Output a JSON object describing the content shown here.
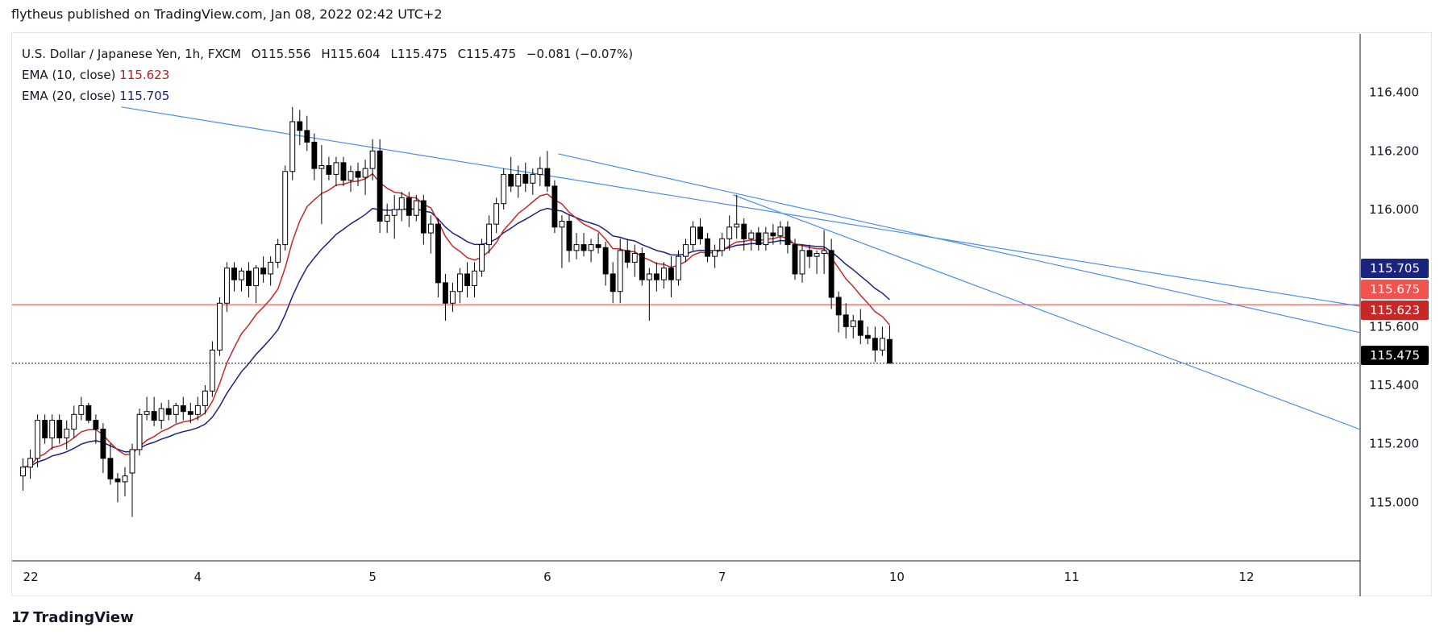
{
  "header": {
    "text": "flytheus published on TradingView.com, Jan 08, 2022 02:42 UTC+2"
  },
  "legend": {
    "symbol": "U.S. Dollar / Japanese Yen, 1h, FXCM",
    "o_label": "O",
    "o": "115.556",
    "h_label": "H",
    "h": "115.604",
    "l_label": "L",
    "l": "115.475",
    "c_label": "C",
    "c": "115.475",
    "change": "−0.081 (−0.07%)",
    "ema10_label": "EMA (10, close)",
    "ema10_value": "115.623",
    "ema20_label": "EMA (20, close)",
    "ema20_value": "115.705"
  },
  "footer": {
    "brand": "TradingView",
    "logo_icon": "tradingview-logo-icon"
  },
  "colors": {
    "up_candle": "#ffffff",
    "down_candle": "#000000",
    "candle_border": "#000000",
    "ema10": "#c62828",
    "ema20": "#1a237e",
    "trendline": "#4a8de8",
    "horizontal_line": "#e53935",
    "current_price_tag": "#000000",
    "ema20_tag": "#1a237e",
    "hline_tag": "#f05350",
    "ema10_tag": "#c62828"
  },
  "price_tags": [
    {
      "value": "115.705",
      "role": "ema20"
    },
    {
      "value": "115.675",
      "role": "horizontal_line"
    },
    {
      "value": "115.623",
      "role": "ema10"
    },
    {
      "value": "115.475",
      "role": "last_price"
    }
  ],
  "chart_data": {
    "type": "candlestick",
    "ylim": [
      114.8,
      116.6
    ],
    "y_ticks": [
      "116.400",
      "116.200",
      "116.000",
      "115.800",
      "115.600",
      "115.400",
      "115.200",
      "115.000"
    ],
    "x_ticks": [
      "22",
      "4",
      "5",
      "6",
      "7",
      "10",
      "11",
      "12"
    ],
    "x_tick_hours": [
      0,
      24,
      48,
      72,
      96,
      120,
      144,
      168
    ],
    "x_range_hours": [
      -1.5,
      183.5
    ],
    "horizontal_line": 115.675,
    "last_close_line": 115.475,
    "trendlines": [
      {
        "from": [
          13.5,
          116.35
        ],
        "to": [
          183.5,
          115.67
        ]
      },
      {
        "from": [
          73.5,
          116.19
        ],
        "to": [
          183.5,
          115.58
        ]
      },
      {
        "from": [
          97.5,
          116.05
        ],
        "to": [
          183.5,
          115.25
        ]
      }
    ],
    "candles": [
      [
        115.09,
        115.15,
        115.04,
        115.12
      ],
      [
        115.12,
        115.18,
        115.08,
        115.15
      ],
      [
        115.15,
        115.3,
        115.12,
        115.28
      ],
      [
        115.28,
        115.3,
        115.2,
        115.22
      ],
      [
        115.22,
        115.3,
        115.18,
        115.28
      ],
      [
        115.28,
        115.3,
        115.2,
        115.22
      ],
      [
        115.22,
        115.28,
        115.18,
        115.25
      ],
      [
        115.25,
        115.33,
        115.22,
        115.3
      ],
      [
        115.3,
        115.36,
        115.28,
        115.33
      ],
      [
        115.33,
        115.34,
        115.27,
        115.28
      ],
      [
        115.28,
        115.3,
        115.2,
        115.25
      ],
      [
        115.25,
        115.27,
        115.1,
        115.15
      ],
      [
        115.15,
        115.2,
        115.06,
        115.08
      ],
      [
        115.08,
        115.1,
        115.0,
        115.07
      ],
      [
        115.07,
        115.12,
        115.02,
        115.09
      ],
      [
        115.1,
        115.2,
        114.95,
        115.18
      ],
      [
        115.18,
        115.32,
        115.16,
        115.3
      ],
      [
        115.3,
        115.36,
        115.28,
        115.31
      ],
      [
        115.31,
        115.36,
        115.26,
        115.28
      ],
      [
        115.28,
        115.34,
        115.25,
        115.32
      ],
      [
        115.32,
        115.35,
        115.28,
        115.3
      ],
      [
        115.3,
        115.34,
        115.27,
        115.33
      ],
      [
        115.33,
        115.36,
        115.28,
        115.31
      ],
      [
        115.31,
        115.34,
        115.27,
        115.3
      ],
      [
        115.3,
        115.36,
        115.28,
        115.33
      ],
      [
        115.33,
        115.4,
        115.3,
        115.38
      ],
      [
        115.38,
        115.55,
        115.36,
        115.52
      ],
      [
        115.52,
        115.7,
        115.5,
        115.68
      ],
      [
        115.68,
        115.82,
        115.65,
        115.8
      ],
      [
        115.8,
        115.82,
        115.72,
        115.76
      ],
      [
        115.76,
        115.8,
        115.72,
        115.79
      ],
      [
        115.79,
        115.82,
        115.7,
        115.74
      ],
      [
        115.74,
        115.81,
        115.68,
        115.8
      ],
      [
        115.8,
        115.84,
        115.75,
        115.78
      ],
      [
        115.78,
        115.84,
        115.74,
        115.82
      ],
      [
        115.82,
        115.9,
        115.8,
        115.88
      ],
      [
        115.88,
        116.15,
        115.86,
        116.13
      ],
      [
        116.13,
        116.35,
        116.1,
        116.3
      ],
      [
        116.3,
        116.34,
        116.22,
        116.27
      ],
      [
        116.27,
        116.32,
        116.2,
        116.23
      ],
      [
        116.23,
        116.26,
        116.1,
        116.14
      ],
      [
        116.14,
        116.22,
        115.95,
        116.15
      ],
      [
        116.15,
        116.18,
        116.1,
        116.12
      ],
      [
        116.12,
        116.18,
        116.08,
        116.16
      ],
      [
        116.16,
        116.18,
        116.08,
        116.1
      ],
      [
        116.1,
        116.15,
        116.06,
        116.13
      ],
      [
        116.13,
        116.16,
        116.08,
        116.11
      ],
      [
        116.11,
        116.17,
        116.05,
        116.14
      ],
      [
        116.14,
        116.24,
        116.1,
        116.2
      ],
      [
        116.2,
        116.24,
        115.92,
        115.96
      ],
      [
        115.96,
        116.02,
        115.92,
        115.98
      ],
      [
        115.98,
        116.05,
        115.9,
        116.0
      ],
      [
        116.0,
        116.06,
        115.96,
        116.04
      ],
      [
        116.04,
        116.06,
        115.94,
        115.98
      ],
      [
        115.98,
        116.05,
        115.96,
        116.03
      ],
      [
        116.03,
        116.05,
        115.88,
        115.92
      ],
      [
        115.92,
        115.98,
        115.85,
        115.95
      ],
      [
        115.95,
        115.97,
        115.7,
        115.75
      ],
      [
        115.75,
        115.78,
        115.62,
        115.68
      ],
      [
        115.68,
        115.75,
        115.65,
        115.72
      ],
      [
        115.72,
        115.8,
        115.68,
        115.78
      ],
      [
        115.78,
        115.82,
        115.7,
        115.74
      ],
      [
        115.74,
        115.82,
        115.7,
        115.79
      ],
      [
        115.79,
        115.9,
        115.77,
        115.88
      ],
      [
        115.88,
        115.98,
        115.85,
        115.95
      ],
      [
        115.95,
        116.04,
        115.92,
        116.02
      ],
      [
        116.02,
        116.14,
        116.0,
        116.12
      ],
      [
        116.12,
        116.18,
        116.06,
        116.08
      ],
      [
        116.08,
        116.15,
        116.04,
        116.12
      ],
      [
        116.12,
        116.16,
        116.06,
        116.09
      ],
      [
        116.09,
        116.14,
        116.05,
        116.12
      ],
      [
        116.12,
        116.18,
        116.08,
        116.14
      ],
      [
        116.14,
        116.2,
        116.06,
        116.08
      ],
      [
        116.08,
        116.1,
        115.92,
        115.94
      ],
      [
        115.94,
        115.98,
        115.8,
        115.96
      ],
      [
        115.96,
        115.98,
        115.82,
        115.86
      ],
      [
        115.86,
        115.92,
        115.83,
        115.88
      ],
      [
        115.88,
        115.92,
        115.84,
        115.86
      ],
      [
        115.86,
        115.9,
        115.82,
        115.88
      ],
      [
        115.88,
        115.92,
        115.85,
        115.87
      ],
      [
        115.87,
        115.89,
        115.74,
        115.78
      ],
      [
        115.78,
        115.82,
        115.68,
        115.72
      ],
      [
        115.72,
        115.9,
        115.68,
        115.86
      ],
      [
        115.86,
        115.9,
        115.8,
        115.82
      ],
      [
        115.82,
        115.88,
        115.77,
        115.85
      ],
      [
        115.85,
        115.87,
        115.74,
        115.76
      ],
      [
        115.76,
        115.8,
        115.62,
        115.78
      ],
      [
        115.78,
        115.82,
        115.72,
        115.76
      ],
      [
        115.76,
        115.82,
        115.73,
        115.8
      ],
      [
        115.8,
        115.84,
        115.7,
        115.76
      ],
      [
        115.76,
        115.86,
        115.74,
        115.84
      ],
      [
        115.84,
        115.9,
        115.82,
        115.88
      ],
      [
        115.88,
        115.96,
        115.86,
        115.94
      ],
      [
        115.94,
        115.97,
        115.88,
        115.9
      ],
      [
        115.9,
        115.92,
        115.82,
        115.84
      ],
      [
        115.84,
        115.88,
        115.8,
        115.86
      ],
      [
        115.86,
        115.92,
        115.84,
        115.9
      ],
      [
        115.9,
        115.98,
        115.86,
        115.94
      ],
      [
        115.94,
        116.05,
        115.9,
        115.95
      ],
      [
        115.95,
        115.97,
        115.86,
        115.9
      ],
      [
        115.9,
        115.93,
        115.86,
        115.92
      ],
      [
        115.92,
        115.94,
        115.86,
        115.88
      ],
      [
        115.88,
        115.94,
        115.86,
        115.92
      ],
      [
        115.92,
        115.95,
        115.88,
        115.91
      ],
      [
        115.91,
        115.96,
        115.88,
        115.94
      ],
      [
        115.94,
        115.96,
        115.85,
        115.88
      ],
      [
        115.88,
        115.9,
        115.76,
        115.78
      ],
      [
        115.78,
        115.88,
        115.75,
        115.86
      ],
      [
        115.86,
        115.88,
        115.8,
        115.84
      ],
      [
        115.84,
        115.86,
        115.78,
        115.85
      ],
      [
        115.85,
        115.93,
        115.78,
        115.86
      ],
      [
        115.86,
        115.9,
        115.66,
        115.7
      ],
      [
        115.7,
        115.72,
        115.58,
        115.64
      ],
      [
        115.64,
        115.68,
        115.56,
        115.6
      ],
      [
        115.6,
        115.64,
        115.56,
        115.62
      ],
      [
        115.62,
        115.66,
        115.54,
        115.57
      ],
      [
        115.57,
        115.6,
        115.54,
        115.56
      ],
      [
        115.56,
        115.6,
        115.48,
        115.52
      ],
      [
        115.52,
        115.6,
        115.5,
        115.56
      ],
      [
        115.556,
        115.604,
        115.475,
        115.475
      ]
    ],
    "series": [
      {
        "name": "EMA (10, close)"
      },
      {
        "name": "EMA (20, close)"
      }
    ]
  }
}
